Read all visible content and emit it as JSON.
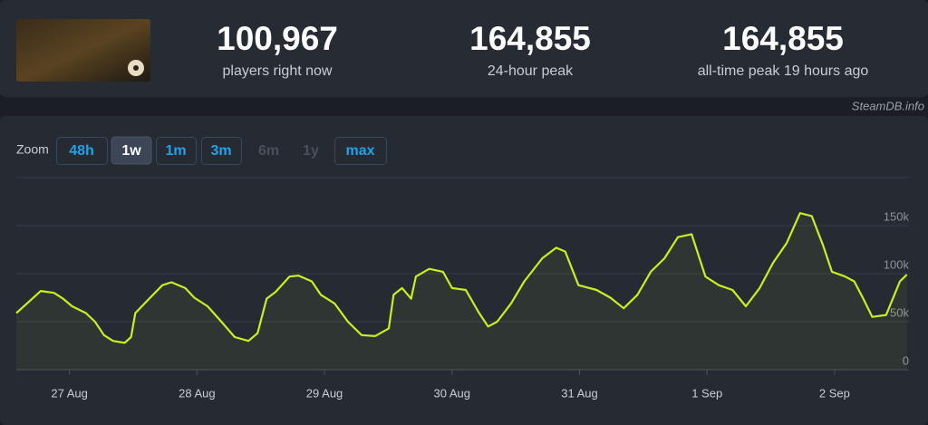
{
  "stats": [
    {
      "value": "100,967",
      "label": "players right now"
    },
    {
      "value": "164,855",
      "label": "24-hour peak"
    },
    {
      "value": "164,855",
      "label": "all-time peak 19 hours ago"
    }
  ],
  "credit": "SteamDB.info",
  "zoom": {
    "label": "Zoom",
    "options": [
      {
        "text": "48h",
        "state": "enabled"
      },
      {
        "text": "1w",
        "state": "active"
      },
      {
        "text": "1m",
        "state": "enabled"
      },
      {
        "text": "3m",
        "state": "enabled"
      },
      {
        "text": "6m",
        "state": "disabled"
      },
      {
        "text": "1y",
        "state": "disabled"
      },
      {
        "text": "max",
        "state": "enabled"
      }
    ]
  },
  "chart_data": {
    "type": "line",
    "color": "#c8ef1f",
    "grid": true,
    "xlim": [
      -10,
      158
    ],
    "xticks": [
      {
        "value": 0,
        "label": "27 Aug"
      },
      {
        "value": 24,
        "label": "28 Aug"
      },
      {
        "value": 48,
        "label": "29 Aug"
      },
      {
        "value": 72,
        "label": "30 Aug"
      },
      {
        "value": 96,
        "label": "31 Aug"
      },
      {
        "value": 120,
        "label": "1 Sep"
      },
      {
        "value": 144,
        "label": "2 Sep"
      }
    ],
    "ylim": [
      0,
      200000
    ],
    "yticks": [
      {
        "value": 0,
        "label": "0"
      },
      {
        "value": 50000,
        "label": "50k"
      },
      {
        "value": 100000,
        "label": "100k"
      },
      {
        "value": 150000,
        "label": "150k"
      }
    ],
    "x": [
      -10,
      -8,
      -5.4,
      -2.9,
      -1.2,
      0.5,
      3.1,
      4.8,
      6.5,
      8.2,
      10.4,
      11.6,
      12.4,
      15,
      17.5,
      19.2,
      21.8,
      23.5,
      26,
      28.6,
      31.1,
      33.7,
      35.4,
      37.1,
      38.8,
      41.4,
      43.1,
      45.6,
      47.3,
      49.9,
      52.4,
      55,
      57.5,
      60.1,
      61,
      62.6,
      64.3,
      65.2,
      67.7,
      70.3,
      72,
      74.6,
      77.1,
      78.8,
      80.5,
      83.1,
      85.6,
      89,
      91.6,
      93.3,
      95.8,
      99.2,
      101.8,
      104.3,
      106.9,
      109.4,
      112,
      114.5,
      117.1,
      119.7,
      122.2,
      124.8,
      127.3,
      129.9,
      132.4,
      135,
      137.5,
      139.7,
      141.8,
      143.5,
      146,
      147.7,
      149.4,
      151.1,
      153.7,
      156.3,
      157.6
    ],
    "series": [
      {
        "name": "Players",
        "values": [
          59000,
          69000,
          82000,
          80000,
          74000,
          66000,
          59000,
          50000,
          36000,
          30000,
          28000,
          34000,
          59000,
          74000,
          88000,
          91000,
          85000,
          75000,
          66000,
          50000,
          34000,
          30000,
          38000,
          74000,
          81000,
          97000,
          98000,
          92000,
          78000,
          69000,
          50000,
          36000,
          35000,
          43000,
          78000,
          85000,
          74000,
          97000,
          105000,
          102000,
          85000,
          83000,
          59000,
          45000,
          50000,
          69000,
          92000,
          116000,
          127000,
          123000,
          88000,
          83000,
          75000,
          64000,
          78000,
          102000,
          116000,
          138000,
          141000,
          97000,
          88000,
          83000,
          66000,
          85000,
          111000,
          132000,
          163000,
          160000,
          130000,
          102000,
          97000,
          92000,
          74000,
          55000,
          57000,
          92000,
          99000
        ]
      }
    ]
  }
}
